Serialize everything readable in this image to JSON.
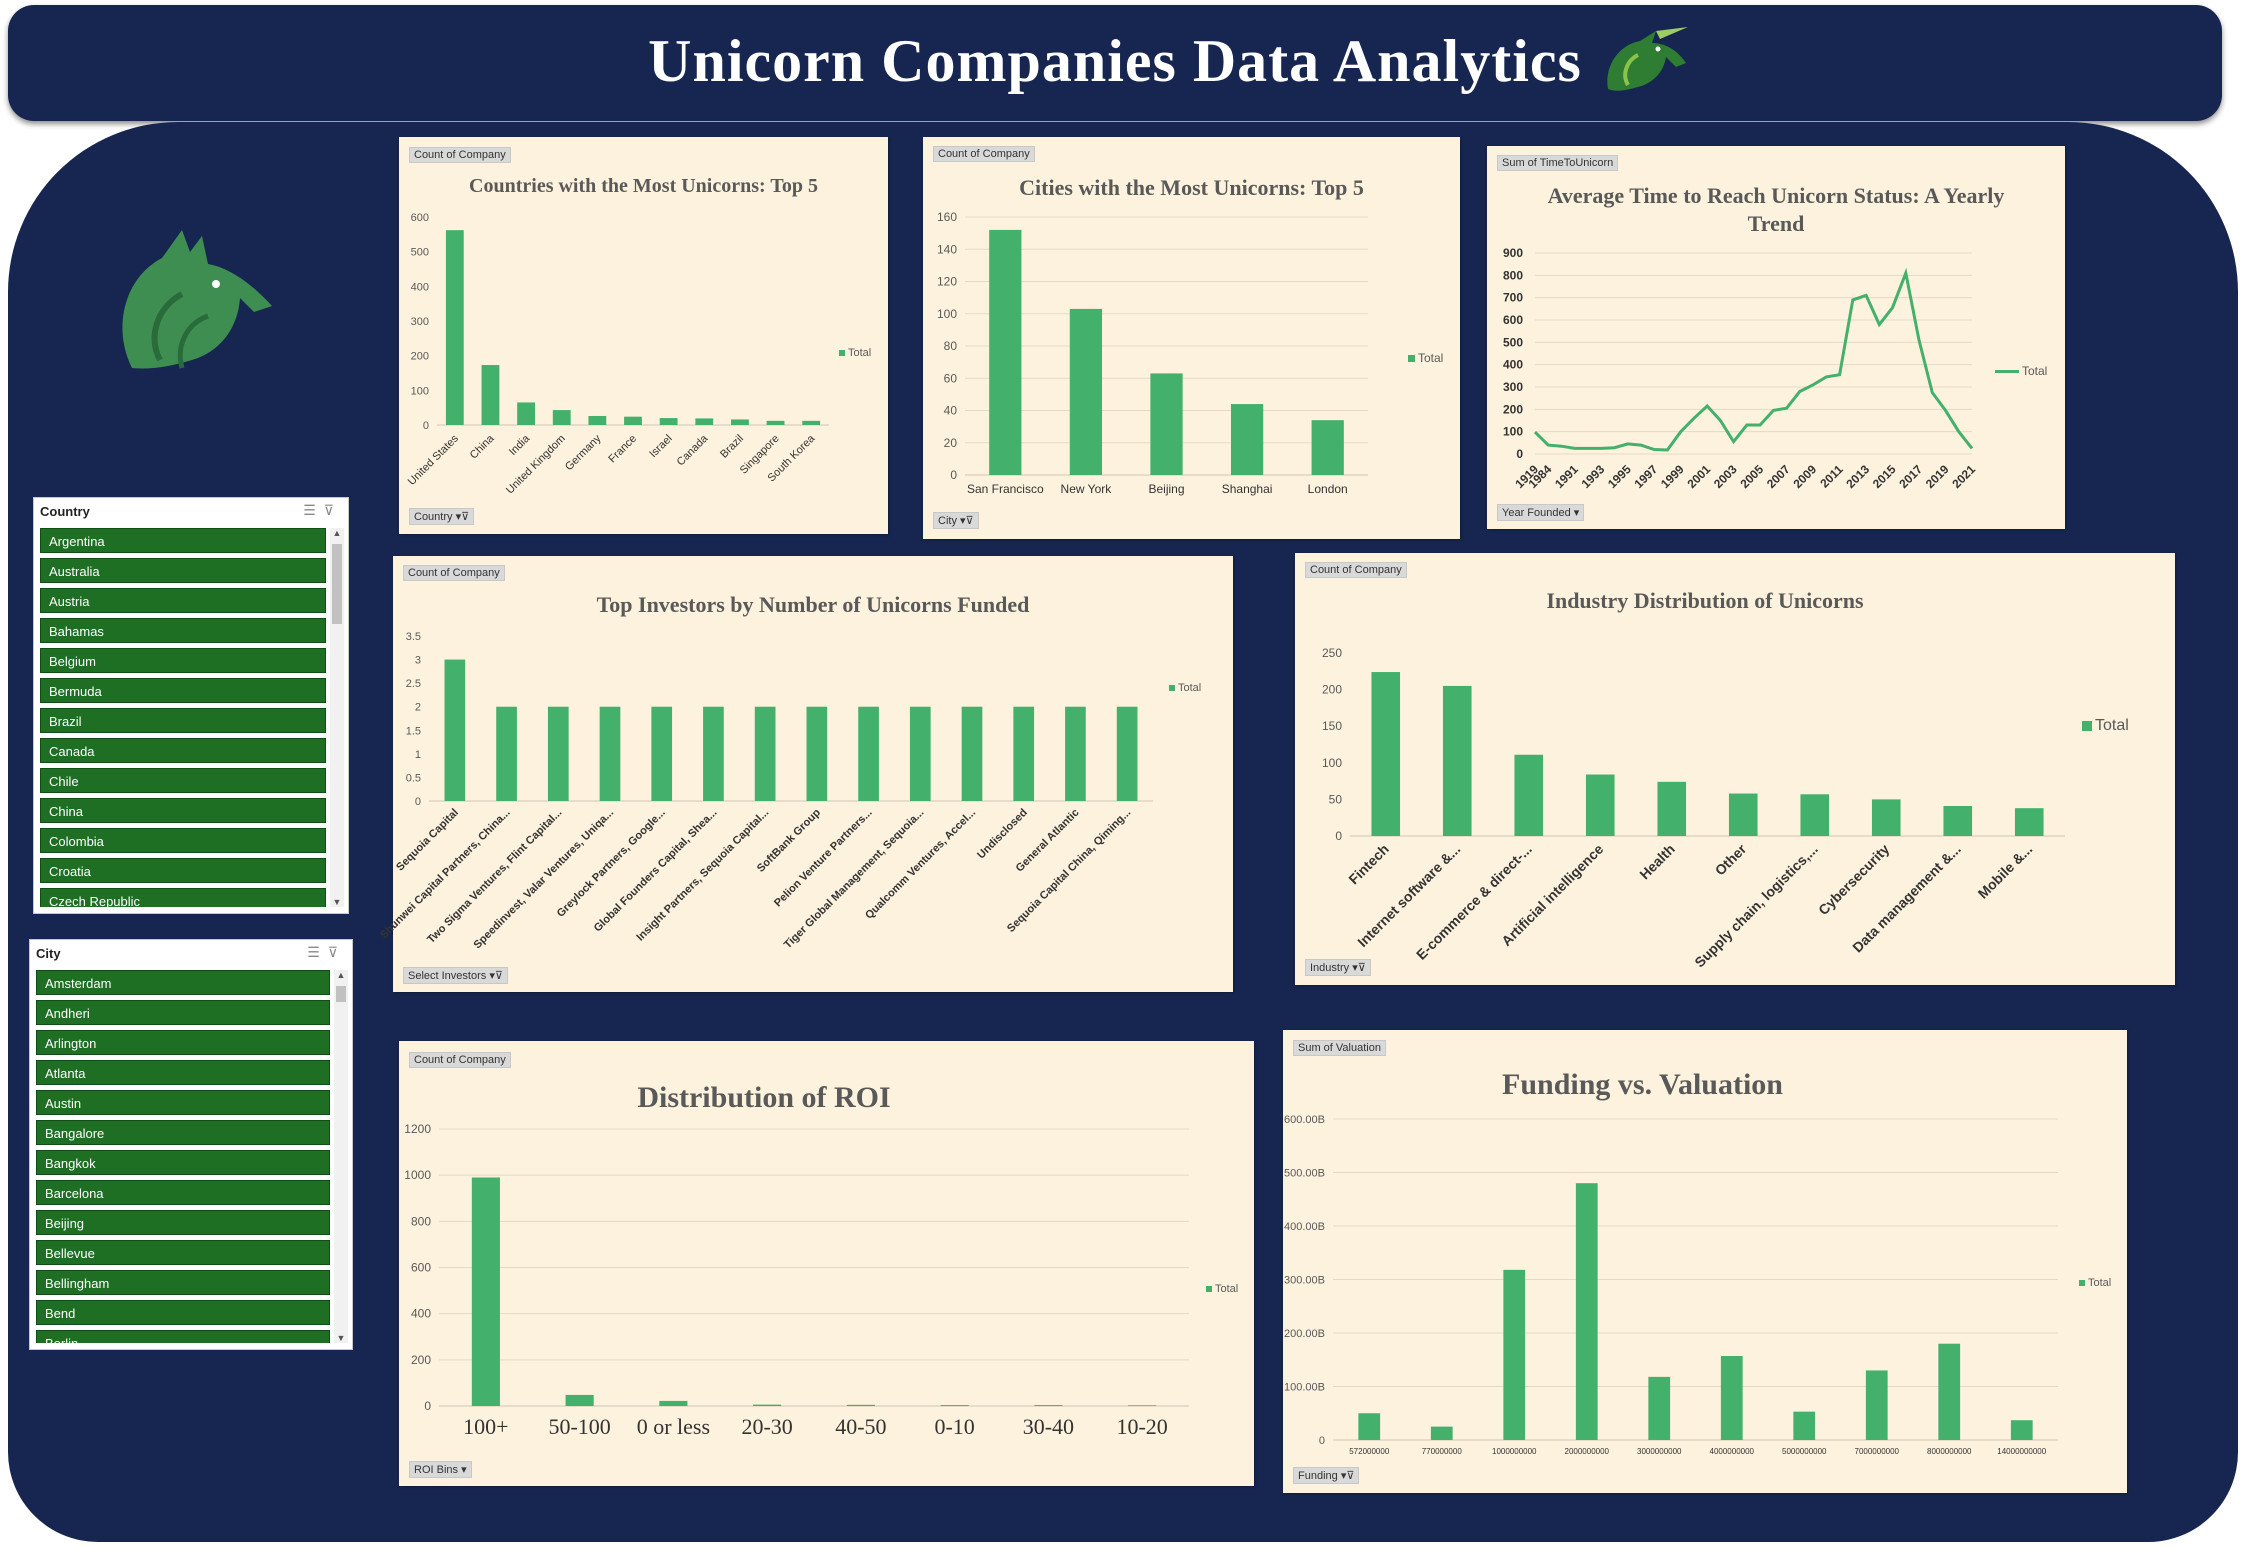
{
  "header": {
    "title": "Unicorn Companies Data Analytics"
  },
  "colors": {
    "navy": "#172650",
    "panel": "#fdf2dd",
    "bar": "#43b06b",
    "slicer_item": "#1e6e24",
    "logo": "#2e7d32"
  },
  "slicers": [
    {
      "title": "Country",
      "items": [
        "Argentina",
        "Australia",
        "Austria",
        "Bahamas",
        "Belgium",
        "Bermuda",
        "Brazil",
        "Canada",
        "Chile",
        "China",
        "Colombia",
        "Croatia",
        "Czech Republic"
      ]
    },
    {
      "title": "City",
      "items": [
        "Amsterdam",
        "Andheri",
        "Arlington",
        "Atlanta",
        "Austin",
        "Bangalore",
        "Bangkok",
        "Barcelona",
        "Beijing",
        "Bellevue",
        "Bellingham",
        "Bend",
        "Berlin"
      ]
    }
  ],
  "slicer_icons": {
    "multi": "multi-select-icon",
    "clear": "clear-filter-icon"
  },
  "panels": {
    "countries": {
      "value_field": "Count of Company",
      "filter_field": "Country",
      "legend": "Total"
    },
    "cities": {
      "value_field": "Count of Company",
      "filter_field": "City",
      "legend": "Total"
    },
    "time": {
      "value_field": "Sum of TimeToUnicorn",
      "filter_field": "Year Founded",
      "legend": "Total"
    },
    "investors": {
      "value_field": "Count of Company",
      "filter_field": "Select Investors",
      "legend": "Total"
    },
    "industry": {
      "value_field": "Count of Company",
      "filter_field": "Industry",
      "legend": "Total"
    },
    "roi": {
      "value_field": "Count of Company",
      "filter_field": "ROI Bins",
      "legend": "Total"
    },
    "funding": {
      "value_field": "Sum of Valuation",
      "filter_field": "Funding",
      "legend": "Total"
    }
  },
  "chart_data": [
    {
      "id": "countries",
      "type": "bar",
      "title": "Countries with the Most Unicorns: Top 5",
      "categories": [
        "United States",
        "China",
        "India",
        "United Kingdom",
        "Germany",
        "France",
        "Israel",
        "Canada",
        "Brazil",
        "Singapore",
        "South Korea"
      ],
      "series": [
        {
          "name": "Total",
          "values": [
            562,
            173,
            65,
            43,
            26,
            24,
            20,
            19,
            16,
            12,
            12
          ]
        }
      ],
      "ylim": [
        0,
        600
      ],
      "yticks": [
        0,
        100,
        200,
        300,
        400,
        500,
        600
      ],
      "legend": "right",
      "grid": false
    },
    {
      "id": "cities",
      "type": "bar",
      "title": "Cities with the Most Unicorns: Top 5",
      "categories": [
        "San Francisco",
        "New York",
        "Beijing",
        "Shanghai",
        "London"
      ],
      "series": [
        {
          "name": "Total",
          "values": [
            152,
            103,
            63,
            44,
            34
          ]
        }
      ],
      "ylim": [
        0,
        160
      ],
      "yticks": [
        0,
        20,
        40,
        60,
        80,
        100,
        120,
        140,
        160
      ],
      "legend": "right",
      "grid": true
    },
    {
      "id": "time",
      "type": "line",
      "title": "Average Time to Reach Unicorn Status: A Yearly Trend",
      "x": [
        1919,
        1984,
        1990,
        1991,
        1992,
        1993,
        1994,
        1995,
        1996,
        1997,
        1998,
        1999,
        2000,
        2001,
        2002,
        2003,
        2004,
        2005,
        2006,
        2007,
        2008,
        2009,
        2010,
        2011,
        2012,
        2013,
        2014,
        2015,
        2016,
        2017,
        2018,
        2019,
        2020,
        2021
      ],
      "xticks": [
        "1919",
        "1984",
        "1991",
        "1993",
        "1995",
        "1997",
        "1999",
        "2001",
        "2003",
        "2005",
        "2007",
        "2009",
        "2011",
        "2013",
        "2015",
        "2017",
        "2019",
        "2021"
      ],
      "series": [
        {
          "name": "Total",
          "values": [
            98,
            40,
            35,
            25,
            25,
            25,
            28,
            45,
            40,
            20,
            18,
            100,
            160,
            215,
            150,
            55,
            130,
            130,
            195,
            205,
            280,
            310,
            345,
            355,
            690,
            710,
            580,
            655,
            810,
            510,
            275,
            195,
            100,
            25
          ]
        }
      ],
      "ylim": [
        0,
        900
      ],
      "yticks": [
        0,
        100,
        200,
        300,
        400,
        500,
        600,
        700,
        800,
        900
      ],
      "legend": "right",
      "grid": true
    },
    {
      "id": "investors",
      "type": "bar",
      "title": "Top Investors by Number of Unicorns Funded",
      "categories": [
        "Sequoia Capital",
        "Shunwei Capital Partners, China...",
        "Two Sigma Ventures, Flint Capital...",
        "Speedinvest, Valar Ventures, Uniqa...",
        "Greylock Partners, Google...",
        "Global Founders Capital, Shea...",
        "Insight Partners, Sequoia Capital...",
        "SoftBank Group",
        "Pelion Venture Partners...",
        "Tiger Global Management, Sequoia...",
        "Qualcomm Ventures, Accel...",
        "Undisclosed",
        "General Atlantic",
        "Sequoia Capital China, Qiming..."
      ],
      "series": [
        {
          "name": "Total",
          "values": [
            3,
            2,
            2,
            2,
            2,
            2,
            2,
            2,
            2,
            2,
            2,
            2,
            2,
            2
          ]
        }
      ],
      "ylim": [
        0,
        3.5
      ],
      "yticks": [
        "0",
        "0.5",
        "1",
        "1.5",
        "2",
        "2.5",
        "3",
        "3.5"
      ],
      "legend": "right",
      "grid": false
    },
    {
      "id": "industry",
      "type": "bar",
      "title": "Industry Distribution of Unicorns",
      "categories": [
        "Fintech",
        "Internet software &...",
        "E-commerce & direct-...",
        "Artificial intelligence",
        "Health",
        "Other",
        "Supply chain, logistics,...",
        "Cybersecurity",
        "Data management &...",
        "Mobile &..."
      ],
      "series": [
        {
          "name": "Total",
          "values": [
            224,
            205,
            111,
            84,
            74,
            58,
            57,
            50,
            41,
            38
          ]
        }
      ],
      "ylim": [
        0,
        250
      ],
      "yticks": [
        0,
        50,
        100,
        150,
        200,
        250
      ],
      "legend": "right",
      "grid": false
    },
    {
      "id": "roi",
      "type": "bar",
      "title": "Distribution of ROI",
      "categories": [
        "100+",
        "50-100",
        "0 or less",
        "20-30",
        "40-50",
        "0-10",
        "30-40",
        "10-20"
      ],
      "series": [
        {
          "name": "Total",
          "values": [
            990,
            48,
            22,
            6,
            5,
            4,
            4,
            3
          ]
        }
      ],
      "ylim": [
        0,
        1200
      ],
      "yticks": [
        0,
        200,
        400,
        600,
        800,
        1000,
        1200
      ],
      "legend": "right",
      "grid": true
    },
    {
      "id": "funding",
      "type": "bar",
      "title": "Funding vs. Valuation",
      "categories": [
        "572000000",
        "770000000",
        "1000000000",
        "2000000000",
        "3000000000",
        "4000000000",
        "5000000000",
        "7000000000",
        "8000000000",
        "14000000000"
      ],
      "series": [
        {
          "name": "Total",
          "values": [
            50,
            25,
            318,
            480,
            118,
            157,
            53,
            130,
            180,
            37
          ]
        }
      ],
      "yunit": "B",
      "ylim": [
        0,
        600
      ],
      "yticks": [
        "0",
        "100.00B",
        "200.00B",
        "300.00B",
        "400.00B",
        "500.00B",
        "600.00B"
      ],
      "legend": "right",
      "grid": true
    }
  ]
}
